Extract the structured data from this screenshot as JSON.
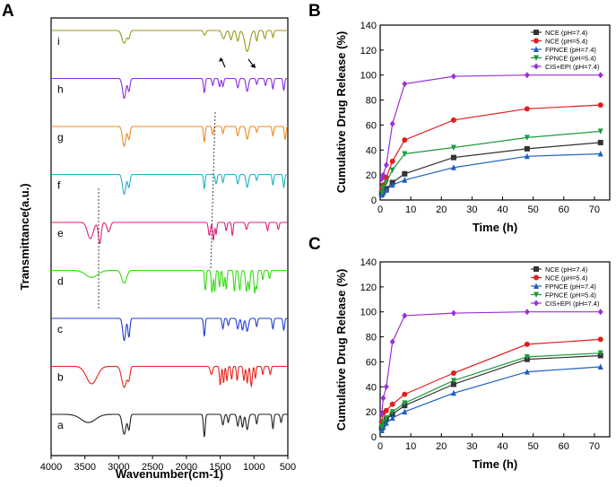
{
  "chart_data": [
    {
      "panel": "A",
      "type": "line",
      "title": "",
      "xlabel": "Wavenumber(cm-1)",
      "ylabel": "Transmittance(a.u.)",
      "xlim": [
        4000,
        500
      ],
      "xticks": [
        4000,
        3500,
        3000,
        2500,
        2000,
        1500,
        1000,
        500
      ],
      "traces": [
        {
          "label": "i",
          "color": "#9a9a1a",
          "bands": [
            [
              2920,
              0.55,
              55
            ],
            [
              2850,
              0.3,
              30
            ],
            [
              1730,
              0.2,
              30
            ],
            [
              1450,
              0.35,
              40
            ],
            [
              1340,
              0.4,
              30
            ],
            [
              1240,
              0.45,
              30
            ],
            [
              1100,
              0.9,
              60
            ],
            [
              960,
              0.45,
              25
            ],
            [
              840,
              0.35,
              25
            ],
            [
              720,
              0.3,
              20
            ]
          ]
        },
        {
          "label": "h",
          "color": "#8a2be2",
          "bands": [
            [
              2920,
              0.85,
              40
            ],
            [
              2850,
              0.55,
              28
            ],
            [
              1735,
              0.6,
              22
            ],
            [
              1610,
              0.3,
              20
            ],
            [
              1510,
              0.35,
              20
            ],
            [
              1460,
              0.35,
              20
            ],
            [
              1240,
              0.4,
              25
            ],
            [
              1100,
              0.55,
              30
            ],
            [
              960,
              0.25,
              20
            ],
            [
              830,
              0.3,
              20
            ],
            [
              720,
              0.45,
              20
            ],
            [
              560,
              0.5,
              20
            ]
          ]
        },
        {
          "label": "g",
          "color": "#f08a1f",
          "bands": [
            [
              2920,
              0.85,
              40
            ],
            [
              2850,
              0.55,
              28
            ],
            [
              1735,
              0.65,
              20
            ],
            [
              1610,
              0.35,
              20
            ],
            [
              1460,
              0.3,
              20
            ],
            [
              1240,
              0.4,
              25
            ],
            [
              1100,
              0.55,
              30
            ],
            [
              960,
              0.25,
              20
            ],
            [
              720,
              0.4,
              20
            ],
            [
              540,
              0.55,
              20
            ]
          ]
        },
        {
          "label": "f",
          "color": "#20b2c4",
          "bands": [
            [
              2920,
              0.85,
              40
            ],
            [
              2850,
              0.55,
              28
            ],
            [
              1735,
              0.6,
              20
            ],
            [
              1560,
              0.4,
              22
            ],
            [
              1460,
              0.35,
              20
            ],
            [
              1240,
              0.4,
              25
            ],
            [
              1100,
              0.55,
              30
            ],
            [
              960,
              0.25,
              20
            ],
            [
              720,
              0.45,
              20
            ],
            [
              560,
              0.55,
              20
            ]
          ]
        },
        {
          "label": "e",
          "color": "#e0207a",
          "bands": [
            [
              3420,
              0.7,
              70
            ],
            [
              3280,
              0.9,
              35
            ],
            [
              3150,
              0.4,
              40
            ],
            [
              1660,
              0.55,
              25
            ],
            [
              1600,
              0.75,
              20
            ],
            [
              1560,
              0.5,
              18
            ],
            [
              1410,
              0.35,
              20
            ],
            [
              1320,
              0.55,
              18
            ],
            [
              1110,
              0.3,
              25
            ],
            [
              800,
              0.35,
              20
            ],
            [
              640,
              0.3,
              20
            ]
          ]
        },
        {
          "label": "d",
          "color": "#33dd11",
          "bands": [
            [
              3400,
              0.3,
              150
            ],
            [
              2920,
              0.55,
              60
            ],
            [
              1720,
              0.85,
              20
            ],
            [
              1620,
              0.95,
              20
            ],
            [
              1580,
              0.9,
              18
            ],
            [
              1510,
              0.7,
              18
            ],
            [
              1450,
              0.7,
              20
            ],
            [
              1410,
              0.8,
              18
            ],
            [
              1290,
              0.9,
              20
            ],
            [
              1210,
              0.85,
              22
            ],
            [
              1110,
              0.9,
              25
            ],
            [
              1070,
              0.8,
              18
            ],
            [
              990,
              0.95,
              20
            ],
            [
              960,
              0.75,
              18
            ],
            [
              870,
              0.4,
              18
            ],
            [
              770,
              0.35,
              20
            ]
          ]
        },
        {
          "label": "c",
          "color": "#1f3fd6",
          "bands": [
            [
              2920,
              0.95,
              35
            ],
            [
              2850,
              0.8,
              25
            ],
            [
              1735,
              0.75,
              20
            ],
            [
              1460,
              0.45,
              20
            ],
            [
              1380,
              0.3,
              20
            ],
            [
              1240,
              0.45,
              25
            ],
            [
              1170,
              0.5,
              25
            ],
            [
              1100,
              0.55,
              30
            ],
            [
              960,
              0.35,
              20
            ],
            [
              720,
              0.45,
              20
            ],
            [
              560,
              0.5,
              20
            ]
          ]
        },
        {
          "label": "b",
          "color": "#e8221a",
          "bands": [
            [
              3400,
              0.75,
              130
            ],
            [
              2920,
              0.9,
              60
            ],
            [
              2850,
              0.5,
              30
            ],
            [
              1630,
              0.35,
              30
            ],
            [
              1500,
              0.8,
              20
            ],
            [
              1450,
              0.7,
              18
            ],
            [
              1400,
              0.6,
              18
            ],
            [
              1330,
              0.55,
              18
            ],
            [
              1250,
              0.6,
              18
            ],
            [
              1150,
              0.6,
              20
            ],
            [
              1100,
              0.7,
              20
            ],
            [
              1040,
              0.85,
              22
            ],
            [
              980,
              0.5,
              18
            ],
            [
              870,
              0.35,
              18
            ],
            [
              760,
              0.35,
              20
            ]
          ]
        },
        {
          "label": "a",
          "color": "#222222",
          "bands": [
            [
              3450,
              0.35,
              180
            ],
            [
              2920,
              0.85,
              45
            ],
            [
              2850,
              0.65,
              28
            ],
            [
              1735,
              0.95,
              22
            ],
            [
              1460,
              0.45,
              25
            ],
            [
              1380,
              0.35,
              20
            ],
            [
              1240,
              0.5,
              25
            ],
            [
              1170,
              0.55,
              25
            ],
            [
              1100,
              0.65,
              30
            ],
            [
              960,
              0.4,
              20
            ],
            [
              720,
              0.6,
              20
            ],
            [
              600,
              0.35,
              20
            ]
          ]
        }
      ]
    },
    {
      "panel": "B",
      "type": "line",
      "title": "",
      "xlabel": "Time (h)",
      "ylabel": "Cumulative Drug Release (%)",
      "xlim": [
        0,
        75
      ],
      "ylim": [
        0,
        140
      ],
      "xticks": [
        0,
        10,
        20,
        30,
        40,
        50,
        60,
        70
      ],
      "yticks": [
        0,
        20,
        40,
        60,
        80,
        100,
        120,
        140
      ],
      "x": [
        0.5,
        1,
        2,
        4,
        8,
        24,
        48,
        72
      ],
      "series": [
        {
          "name": "NCE (pH=7.4)",
          "color": "#333333",
          "marker": "square",
          "values": [
            5,
            7,
            9,
            14,
            21,
            34,
            41,
            46
          ]
        },
        {
          "name": "NCE (pH=5.4)",
          "color": "#e0201e",
          "marker": "circle",
          "values": [
            8,
            12,
            18,
            31,
            48,
            64,
            73,
            76
          ]
        },
        {
          "name": "FPNCE (pH=7.4)",
          "color": "#1f5fbf",
          "marker": "triangle-up",
          "values": [
            4,
            6,
            8,
            12,
            16,
            26,
            35,
            37
          ]
        },
        {
          "name": "FPNCE (pH=5.4)",
          "color": "#1e9a40",
          "marker": "triangle-down",
          "values": [
            6,
            10,
            14,
            24,
            37,
            42,
            50,
            55
          ]
        },
        {
          "name": "CIS+EPI (pH=7.4)",
          "color": "#9b30d9",
          "marker": "diamond",
          "values": [
            17,
            20,
            28,
            61,
            93,
            99,
            100,
            100
          ]
        }
      ]
    },
    {
      "panel": "C",
      "type": "line",
      "title": "",
      "xlabel": "Time (h)",
      "ylabel": "Cumulative Drug Release (%)",
      "xlim": [
        0,
        75
      ],
      "ylim": [
        0,
        140
      ],
      "xticks": [
        0,
        10,
        20,
        30,
        40,
        50,
        60,
        70
      ],
      "yticks": [
        0,
        20,
        40,
        60,
        80,
        100,
        120,
        140
      ],
      "x": [
        0.5,
        1,
        2,
        4,
        8,
        24,
        48,
        72
      ],
      "series": [
        {
          "name": "NCE (pH=7.4)",
          "color": "#333333",
          "marker": "square",
          "values": [
            7,
            10,
            14,
            18,
            25,
            42,
            62,
            65
          ]
        },
        {
          "name": "NCE (pH=5.4)",
          "color": "#e0201e",
          "marker": "circle",
          "values": [
            12,
            19,
            21,
            26,
            34,
            51,
            74,
            78
          ]
        },
        {
          "name": "FPNCE (pH=7.4)",
          "color": "#1f5fbf",
          "marker": "triangle-up",
          "values": [
            5,
            8,
            11,
            15,
            20,
            35,
            52,
            56
          ]
        },
        {
          "name": "FPNCE (pH=5.4)",
          "color": "#1e9a40",
          "marker": "triangle-down",
          "values": [
            8,
            12,
            15,
            20,
            27,
            45,
            64,
            67
          ]
        },
        {
          "name": "CIS+EPI (pH=7.4)",
          "color": "#9b30d9",
          "marker": "diamond",
          "values": [
            18,
            31,
            40,
            76,
            97,
            99,
            100,
            100
          ]
        }
      ]
    }
  ]
}
